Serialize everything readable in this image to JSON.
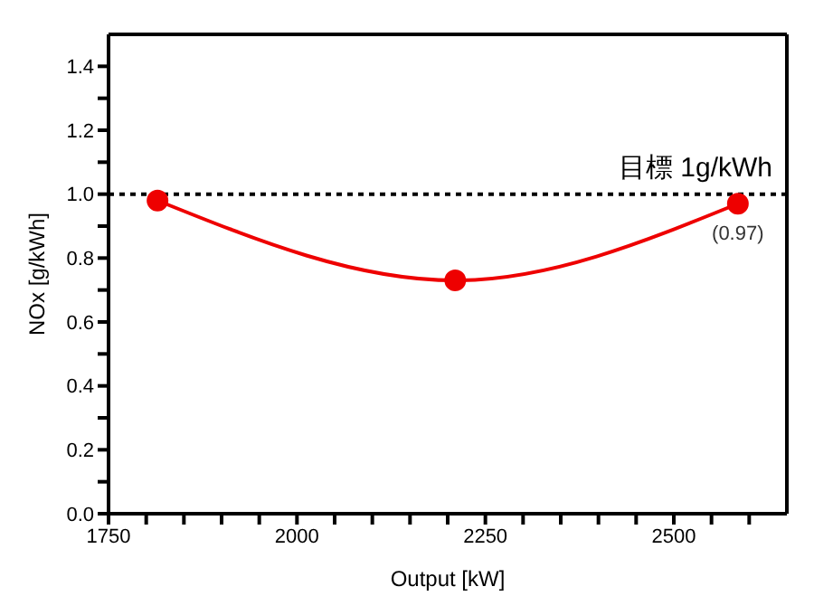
{
  "chart_data": {
    "type": "line",
    "xlabel": "Output [kW]",
    "ylabel": "NOx [g/kWh]",
    "x": [
      1815,
      2210,
      2585
    ],
    "series": [
      {
        "color": "#ee0000",
        "values": [
          0.98,
          0.73,
          0.97
        ],
        "value_labels": [
          null,
          null,
          "(0.97)"
        ]
      }
    ],
    "xlim": [
      1750,
      2650
    ],
    "xticks": [
      1750,
      {
        "value": 1800,
        "label": null
      },
      {
        "value": 1850,
        "label": null
      },
      {
        "value": 1900,
        "label": null
      },
      {
        "value": 1950,
        "label": null
      },
      2000,
      {
        "value": 2050,
        "label": null
      },
      {
        "value": 2100,
        "label": null
      },
      {
        "value": 2150,
        "label": null
      },
      {
        "value": 2200,
        "label": null
      },
      2250,
      {
        "value": 2300,
        "label": null
      },
      {
        "value": 2350,
        "label": null
      },
      {
        "value": 2400,
        "label": null
      },
      {
        "value": 2450,
        "label": null
      },
      2500,
      {
        "value": 2550,
        "label": null
      },
      {
        "value": 2600,
        "label": null
      }
    ],
    "ylim": [
      0,
      1.5
    ],
    "yticks": [
      {
        "value": 0,
        "label": "0.0"
      },
      {
        "value": 0.1,
        "label": null
      },
      {
        "value": 0.2,
        "label": "0.2"
      },
      {
        "value": 0.3,
        "label": null
      },
      {
        "value": 0.4,
        "label": "0.4"
      },
      {
        "value": 0.5,
        "label": null
      },
      {
        "value": 0.6,
        "label": "0.6"
      },
      {
        "value": 0.7,
        "label": null
      },
      {
        "value": 0.8,
        "label": "0.8"
      },
      {
        "value": 0.9,
        "label": null
      },
      {
        "value": 1.0,
        "label": "1.0"
      },
      {
        "value": 1.1,
        "label": null
      },
      {
        "value": 1.2,
        "label": "1.2"
      },
      {
        "value": 1.3,
        "label": null
      },
      {
        "value": 1.4,
        "label": "1.4"
      }
    ],
    "ref_lines": [
      {
        "axis": "y",
        "value": 1.0,
        "label": "目標  1g/kWh",
        "color": "#000000",
        "line_style": "dotted"
      }
    ],
    "marker": "circle",
    "line_style": "solid",
    "grid": false,
    "legend": false
  }
}
